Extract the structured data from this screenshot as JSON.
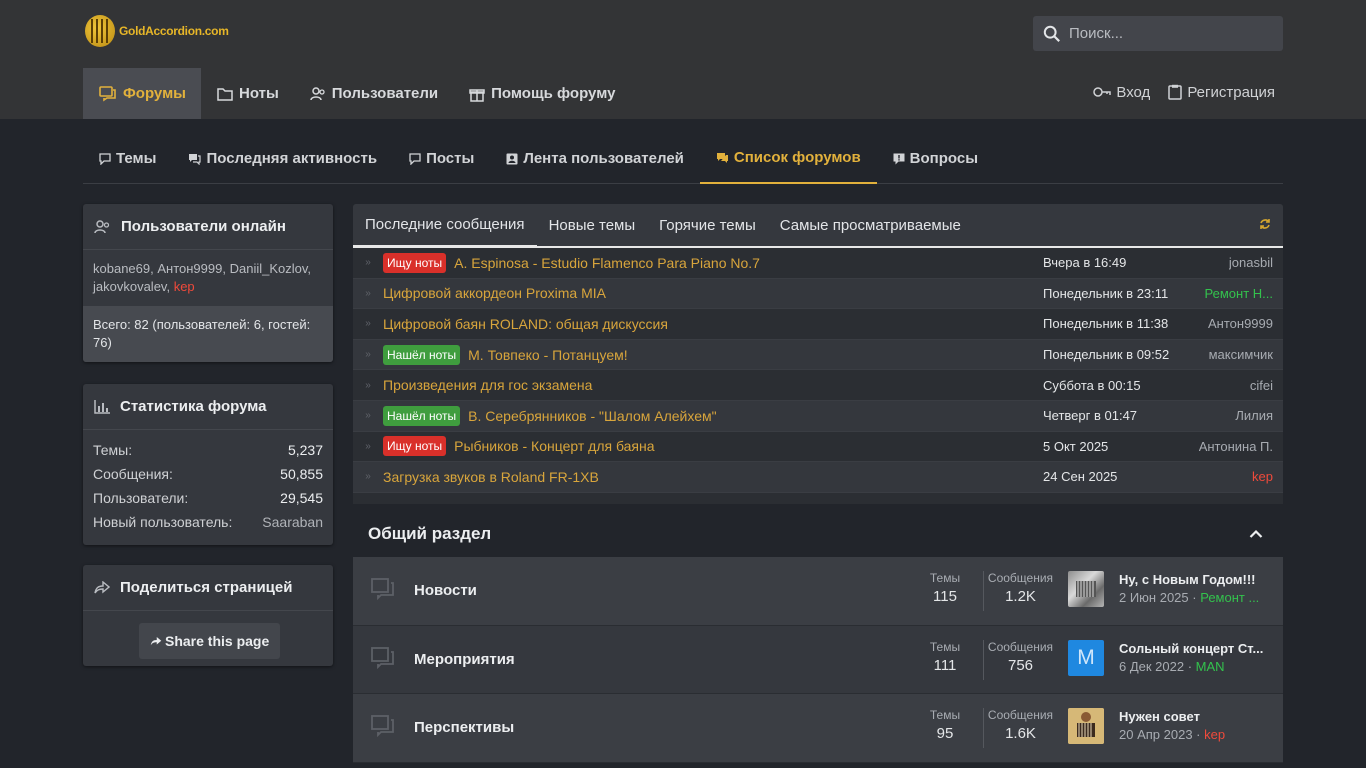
{
  "header": {
    "logo_text": "GoldAccordion.com",
    "search_placeholder": "Поиск..."
  },
  "nav": {
    "items": [
      {
        "label": "Форумы",
        "icon": "forums-icon",
        "active": true
      },
      {
        "label": "Ноты",
        "icon": "folder-icon"
      },
      {
        "label": "Пользователи",
        "icon": "users-icon"
      },
      {
        "label": "Помощь форуму",
        "icon": "gift-icon"
      }
    ],
    "login_label": "Вход",
    "register_label": "Регистрация"
  },
  "subnav": {
    "items": [
      {
        "label": "Темы"
      },
      {
        "label": "Последняя активность"
      },
      {
        "label": "Посты"
      },
      {
        "label": "Лента пользователей"
      },
      {
        "label": "Список форумов",
        "active": true
      },
      {
        "label": "Вопросы"
      }
    ]
  },
  "online": {
    "title": "Пользователи онлайн",
    "users": [
      "kobane69",
      "Антон9999",
      "Daniil_Kozlov",
      "jakovkovalev",
      "kep"
    ],
    "total": "Всего: 82 (пользователей: 6, гостей: 76)"
  },
  "stats": {
    "title": "Статистика форума",
    "rows": [
      {
        "label": "Темы:",
        "value": "5,237"
      },
      {
        "label": "Сообщения:",
        "value": "50,855"
      },
      {
        "label": "Пользователи:",
        "value": "29,545"
      },
      {
        "label": "Новый пользователь:",
        "value": "Saaraban"
      }
    ]
  },
  "share": {
    "title": "Поделиться страницей",
    "button": "Share this page"
  },
  "latest": {
    "tabs": [
      "Последние сообщения",
      "Новые темы",
      "Горячие темы",
      "Самые просматриваемые"
    ],
    "rows": [
      {
        "badge": "Ищу ноты",
        "badge_color": "#d9302a",
        "title": "A. Espinosa - Estudio Flamenco Para Piano No.7",
        "date": "Вчера в 16:49",
        "user": "jonasbil",
        "user_color": "default"
      },
      {
        "badge": "",
        "title": "Цифровой аккордеон Proxima MIA",
        "date": "Понедельник в 23:11",
        "user": "Ремонт Н...",
        "user_color": "green"
      },
      {
        "badge": "",
        "title": "Цифровой баян ROLAND: общая дискуссия",
        "date": "Понедельник в 11:38",
        "user": "Антон9999",
        "user_color": "default"
      },
      {
        "badge": "Нашёл ноты",
        "badge_color": "#3f9d3e",
        "title": "М. Товпеко - Потанцуем!",
        "date": "Понедельник в 09:52",
        "user": "максимчик",
        "user_color": "default"
      },
      {
        "badge": "",
        "title": "Произведения для гос экзамена",
        "date": "Суббота в 00:15",
        "user": "cifei",
        "user_color": "default"
      },
      {
        "badge": "Нашёл ноты",
        "badge_color": "#3f9d3e",
        "title": "В. Серебрянников - \"Шалом Алейхем\"",
        "date": "Четверг в 01:47",
        "user": "Лилия",
        "user_color": "default"
      },
      {
        "badge": "Ищу ноты",
        "badge_color": "#d9302a",
        "title": "Рыбников - Концерт для баяна",
        "date": "5 Окт 2025",
        "user": "Антонина П.",
        "user_color": "default"
      },
      {
        "badge": "",
        "title": "Загрузка звуков в Roland FR-1XB",
        "date": "24 Сен 2025",
        "user": "kep",
        "user_color": "red"
      }
    ]
  },
  "section": {
    "title": "Общий раздел",
    "stat_labels": {
      "threads": "Темы",
      "messages": "Сообщения"
    },
    "forums": [
      {
        "name": "Новости",
        "threads": "115",
        "messages": "1.2K",
        "last_title": "Ну, с Новым Годом!!!",
        "last_date": "2 Июн 2025",
        "last_user": "Ремонт ...",
        "last_user_color": "green",
        "avatar": "photo"
      },
      {
        "name": "Мероприятия",
        "threads": "111",
        "messages": "756",
        "last_title": "Сольный концерт Ст...",
        "last_date": "6 Дек 2022",
        "last_user": "MAN",
        "last_user_color": "green",
        "avatar": "M"
      },
      {
        "name": "Перспективы",
        "threads": "95",
        "messages": "1.6K",
        "last_title": "Нужен совет",
        "last_date": "20 Апр 2023",
        "last_user": "kep",
        "last_user_color": "red",
        "avatar": "photo"
      }
    ]
  },
  "colors": {
    "accent": "#e2b13c",
    "green": "#33c24d",
    "red": "#ef4a3b"
  }
}
